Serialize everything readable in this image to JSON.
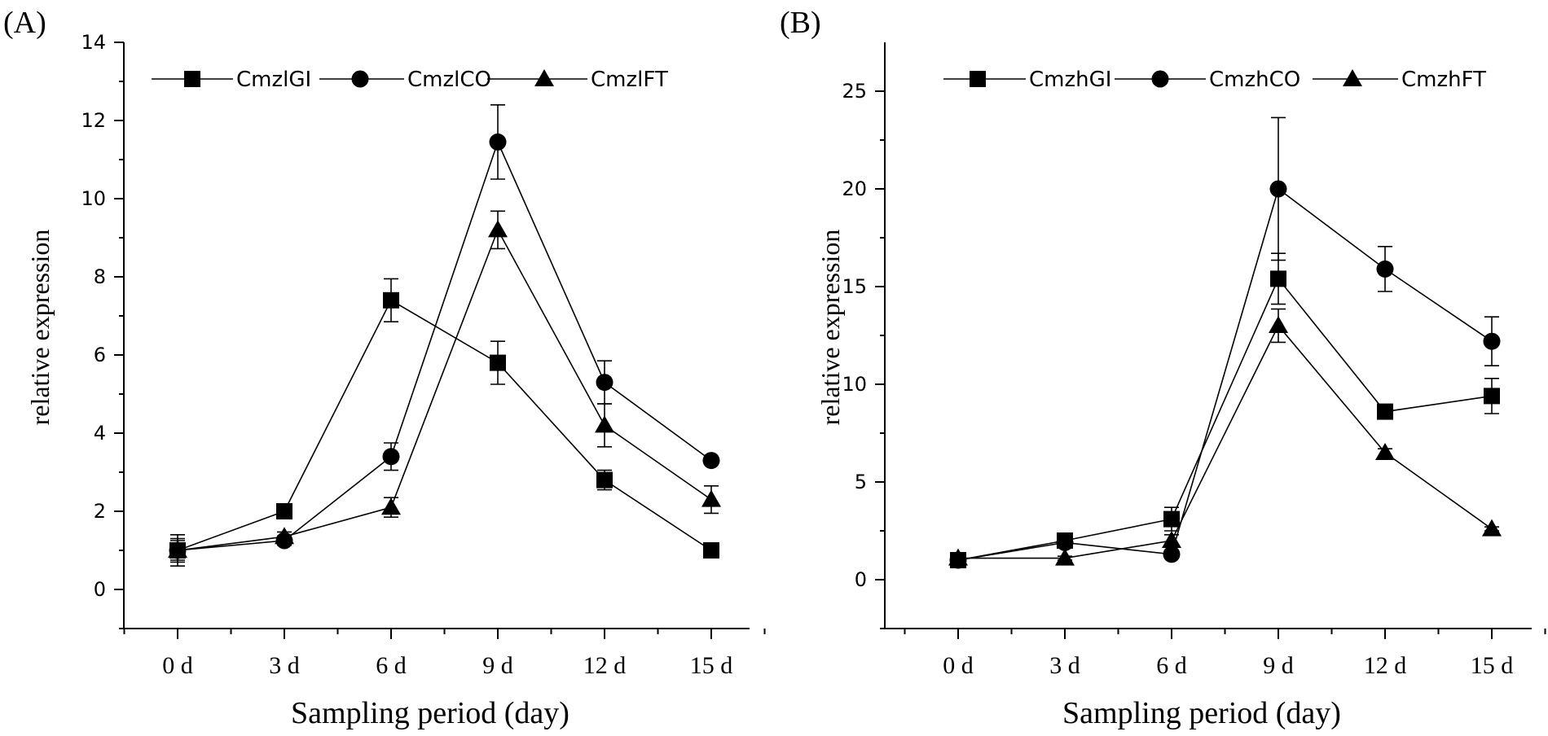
{
  "chart_data": [
    {
      "type": "line",
      "panel_label": "(A)",
      "xlabel": "Sampling period (day)",
      "ylabel": "relative expression",
      "categories": [
        "0 d",
        "3 d",
        "6 d",
        "9 d",
        "12 d",
        "15 d"
      ],
      "ylim": [
        -1,
        14
      ],
      "yticks": [
        0,
        2,
        4,
        6,
        8,
        10,
        12,
        14
      ],
      "legend_position": "top",
      "series": [
        {
          "name": "CmzlGI",
          "marker": "square",
          "values": [
            1.0,
            2.0,
            7.4,
            5.8,
            2.8,
            1.0
          ],
          "errors": [
            0.4,
            0.1,
            0.55,
            0.55,
            0.25,
            0.08
          ]
        },
        {
          "name": "CmzlCO",
          "marker": "circle",
          "values": [
            1.0,
            1.25,
            3.4,
            11.45,
            5.3,
            3.3
          ],
          "errors": [
            0.3,
            0.12,
            0.35,
            0.95,
            0.55,
            0.1
          ]
        },
        {
          "name": "CmzlFT",
          "marker": "triangle",
          "values": [
            1.0,
            1.35,
            2.1,
            9.2,
            4.2,
            2.3
          ],
          "errors": [
            0.25,
            0.12,
            0.25,
            0.48,
            0.55,
            0.35
          ]
        }
      ]
    },
    {
      "type": "line",
      "panel_label": "(B)",
      "xlabel": "Sampling period (day)",
      "ylabel": "relative expression",
      "categories": [
        "0 d",
        "3 d",
        "6 d",
        "9 d",
        "12 d",
        "15 d"
      ],
      "ylim": [
        -2.5,
        27.5
      ],
      "yticks": [
        0,
        5,
        10,
        15,
        20,
        25
      ],
      "legend_position": "top",
      "series": [
        {
          "name": "CmzhGI",
          "marker": "square",
          "values": [
            1.0,
            2.0,
            3.1,
            15.4,
            8.6,
            9.4
          ],
          "errors": [
            0.2,
            0.15,
            0.6,
            1.3,
            0.2,
            0.9
          ]
        },
        {
          "name": "CmzhCO",
          "marker": "circle",
          "values": [
            1.0,
            1.9,
            1.3,
            20.0,
            15.9,
            12.2
          ],
          "errors": [
            0.2,
            0.15,
            0.2,
            3.65,
            1.15,
            1.25
          ]
        },
        {
          "name": "CmzhFT",
          "marker": "triangle",
          "values": [
            1.1,
            1.1,
            2.0,
            13.0,
            6.5,
            2.6
          ],
          "errors": [
            0.15,
            0.1,
            0.3,
            0.85,
            0.2,
            0.1
          ]
        }
      ]
    }
  ]
}
